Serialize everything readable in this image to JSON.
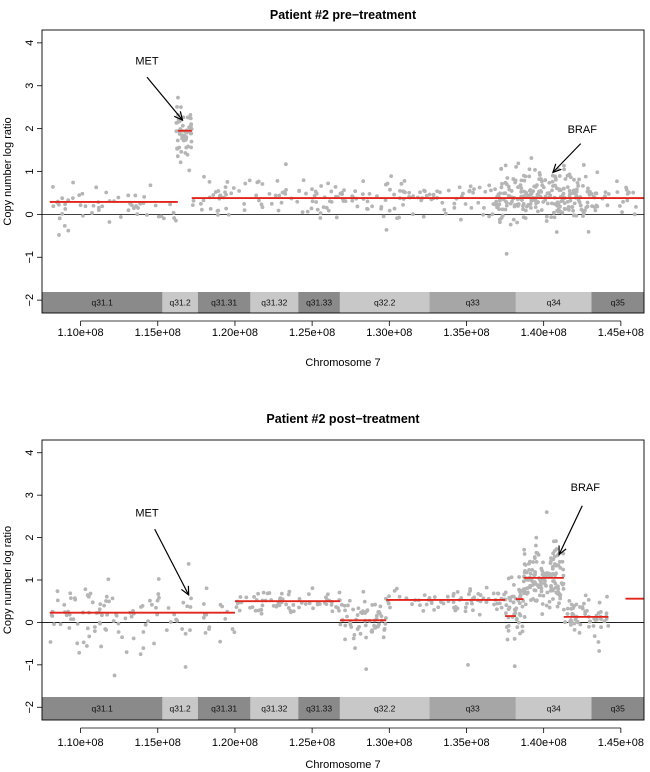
{
  "chart_data": [
    {
      "type": "scatter",
      "title": "Patient #2 pre−treatment",
      "xlabel": "Chromosome 7",
      "ylabel": "Copy number log ratio",
      "xlim": [
        107500000,
        146500000
      ],
      "ylim": [
        -2.3,
        4.3
      ],
      "x_ticks": [
        110000000,
        115000000,
        120000000,
        125000000,
        130000000,
        135000000,
        140000000,
        145000000
      ],
      "x_tick_labels": [
        "1.10e+08",
        "1.15e+08",
        "1.20e+08",
        "1.25e+08",
        "1.30e+08",
        "1.35e+08",
        "1.40e+08",
        "1.45e+08"
      ],
      "y_ticks": [
        -2,
        -1,
        0,
        1,
        2,
        3,
        4
      ],
      "y_tick_labels": [
        "−2",
        "−1",
        "0",
        "1",
        "2",
        "3",
        "4"
      ],
      "bands": [
        {
          "name": "q31.1",
          "start": 107500000,
          "end": 115300000,
          "color": "#8a8a8a"
        },
        {
          "name": "q31.2",
          "start": 115300000,
          "end": 117600000,
          "color": "#c8c8c8"
        },
        {
          "name": "q31.31",
          "start": 117600000,
          "end": 121000000,
          "color": "#8a8a8a"
        },
        {
          "name": "q31.32",
          "start": 121000000,
          "end": 124100000,
          "color": "#c8c8c8"
        },
        {
          "name": "q31.33",
          "start": 124100000,
          "end": 126800000,
          "color": "#8a8a8a"
        },
        {
          "name": "q32.2",
          "start": 126800000,
          "end": 132600000,
          "color": "#c8c8c8"
        },
        {
          "name": "q33",
          "start": 132600000,
          "end": 138200000,
          "color": "#a6a6a6"
        },
        {
          "name": "q34",
          "start": 138200000,
          "end": 143100000,
          "color": "#c8c8c8"
        },
        {
          "name": "q35",
          "start": 143100000,
          "end": 146500000,
          "color": "#8a8a8a"
        }
      ],
      "segments": [
        {
          "start": 108000000,
          "end": 116300000,
          "value": 0.29
        },
        {
          "start": 116300000,
          "end": 117200000,
          "value": 1.95
        },
        {
          "start": 117200000,
          "end": 146500000,
          "value": 0.38
        }
      ],
      "clusters": [
        {
          "start": 108000000,
          "end": 116200000,
          "mean": 0.25,
          "sd": 0.25,
          "count": 55
        },
        {
          "start": 116200000,
          "end": 117200000,
          "mean": 1.9,
          "sd": 0.25,
          "count": 60
        },
        {
          "start": 117200000,
          "end": 125000000,
          "mean": 0.4,
          "sd": 0.22,
          "count": 60
        },
        {
          "start": 125000000,
          "end": 137000000,
          "mean": 0.38,
          "sd": 0.22,
          "count": 120
        },
        {
          "start": 137000000,
          "end": 143500000,
          "mean": 0.42,
          "sd": 0.3,
          "count": 240
        },
        {
          "start": 143500000,
          "end": 146000000,
          "mean": 0.35,
          "sd": 0.2,
          "count": 18
        }
      ],
      "outliers": [
        {
          "x": 108600000,
          "y": -0.48
        },
        {
          "x": 123300000,
          "y": 1.17
        },
        {
          "x": 137600000,
          "y": -0.92
        },
        {
          "x": 116500000,
          "y": 2.5
        }
      ],
      "annotations": [
        {
          "text": "MET",
          "label_x": 114300000,
          "label_y": 3.5,
          "arrow_from_x": 114300000,
          "arrow_from_y": 3.2,
          "arrow_to_x": 116600000,
          "arrow_to_y": 2.2
        },
        {
          "text": "BRAF",
          "label_x": 142500000,
          "label_y": 1.9,
          "arrow_from_x": 142400000,
          "arrow_from_y": 1.65,
          "arrow_to_x": 140600000,
          "arrow_to_y": 0.98
        }
      ]
    },
    {
      "type": "scatter",
      "title": "Patient #2 post−treatment",
      "xlabel": "Chromosome 7",
      "ylabel": "Copy number log ratio",
      "xlim": [
        107500000,
        146500000
      ],
      "ylim": [
        -2.3,
        4.3
      ],
      "x_ticks": [
        110000000,
        115000000,
        120000000,
        125000000,
        130000000,
        135000000,
        140000000,
        145000000
      ],
      "x_tick_labels": [
        "1.10e+08",
        "1.15e+08",
        "1.20e+08",
        "1.25e+08",
        "1.30e+08",
        "1.35e+08",
        "1.40e+08",
        "1.45e+08"
      ],
      "y_ticks": [
        -2,
        -1,
        0,
        1,
        2,
        3,
        4
      ],
      "y_tick_labels": [
        "−2",
        "−1",
        "0",
        "1",
        "2",
        "3",
        "4"
      ],
      "bands": [
        {
          "name": "q31.1",
          "start": 107500000,
          "end": 115300000,
          "color": "#8a8a8a"
        },
        {
          "name": "q31.2",
          "start": 115300000,
          "end": 117600000,
          "color": "#c8c8c8"
        },
        {
          "name": "q31.31",
          "start": 117600000,
          "end": 121000000,
          "color": "#8a8a8a"
        },
        {
          "name": "q31.32",
          "start": 121000000,
          "end": 124100000,
          "color": "#c8c8c8"
        },
        {
          "name": "q31.33",
          "start": 124100000,
          "end": 126800000,
          "color": "#8a8a8a"
        },
        {
          "name": "q32.2",
          "start": 126800000,
          "end": 132600000,
          "color": "#c8c8c8"
        },
        {
          "name": "q33",
          "start": 132600000,
          "end": 138200000,
          "color": "#a6a6a6"
        },
        {
          "name": "q34",
          "start": 138200000,
          "end": 143100000,
          "color": "#c8c8c8"
        },
        {
          "name": "q35",
          "start": 143100000,
          "end": 146500000,
          "color": "#8a8a8a"
        }
      ],
      "segments": [
        {
          "start": 108000000,
          "end": 120000000,
          "value": 0.23
        },
        {
          "start": 120000000,
          "end": 126800000,
          "value": 0.5
        },
        {
          "start": 126800000,
          "end": 129800000,
          "value": 0.05
        },
        {
          "start": 129800000,
          "end": 137500000,
          "value": 0.53
        },
        {
          "start": 137500000,
          "end": 138200000,
          "value": 0.15
        },
        {
          "start": 138200000,
          "end": 138700000,
          "value": 0.55
        },
        {
          "start": 138700000,
          "end": 141300000,
          "value": 1.05
        },
        {
          "start": 141300000,
          "end": 144200000,
          "value": 0.13
        },
        {
          "start": 145300000,
          "end": 146500000,
          "value": 0.56
        }
      ],
      "clusters": [
        {
          "start": 108000000,
          "end": 120000000,
          "mean": 0.22,
          "sd": 0.35,
          "count": 110
        },
        {
          "start": 120000000,
          "end": 126800000,
          "mean": 0.5,
          "sd": 0.15,
          "count": 70
        },
        {
          "start": 126800000,
          "end": 129800000,
          "mean": 0.05,
          "sd": 0.28,
          "count": 60
        },
        {
          "start": 129800000,
          "end": 137500000,
          "mean": 0.52,
          "sd": 0.15,
          "count": 70
        },
        {
          "start": 137500000,
          "end": 138700000,
          "mean": 0.4,
          "sd": 0.5,
          "count": 50
        },
        {
          "start": 138700000,
          "end": 141300000,
          "mean": 1.05,
          "sd": 0.35,
          "count": 150
        },
        {
          "start": 141300000,
          "end": 144200000,
          "mean": 0.12,
          "sd": 0.2,
          "count": 60
        }
      ],
      "outliers": [
        {
          "x": 116800000,
          "y": -1.05
        },
        {
          "x": 117000000,
          "y": 1.38
        },
        {
          "x": 112200000,
          "y": -1.25
        },
        {
          "x": 128500000,
          "y": -1.1
        },
        {
          "x": 135100000,
          "y": -1.0
        },
        {
          "x": 140200000,
          "y": 2.6
        }
      ],
      "annotations": [
        {
          "text": "MET",
          "label_x": 114300000,
          "label_y": 2.5,
          "arrow_from_x": 114800000,
          "arrow_from_y": 2.2,
          "arrow_to_x": 117000000,
          "arrow_to_y": 0.65
        },
        {
          "text": "BRAF",
          "label_x": 142700000,
          "label_y": 3.1,
          "arrow_from_x": 142500000,
          "arrow_from_y": 2.75,
          "arrow_to_x": 141000000,
          "arrow_to_y": 1.6
        }
      ]
    }
  ]
}
